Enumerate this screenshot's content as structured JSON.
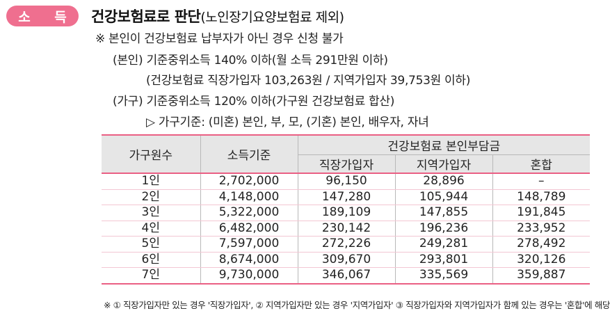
{
  "badge": "소 득",
  "title": {
    "main": "건강보험료로 판단",
    "sub": "(노인장기요양보험료 제외)"
  },
  "notes": {
    "line1": "※ 본인이 건강보험료 납부자가 아닌 경우 신청 불가",
    "line2": "(본인) 기준중위소득 140% 이하(월 소득 291만원 이하)",
    "line3": "(건강보험료 직장가입자 103,263원 / 지역가입자 39,753원 이하)",
    "line4": "(가구) 기준중위소득 120% 이하(가구원 건강보험료 합산)",
    "line5": "▷ 가구기준: (미혼) 본인, 부, 모, (기혼) 본인, 배우자, 자녀"
  },
  "table": {
    "headers": {
      "household": "가구원수",
      "income": "소득기준",
      "group": "건강보험료 본인부담금",
      "workplace": "직장가입자",
      "regional": "지역가입자",
      "mixed": "혼합"
    },
    "rows": [
      {
        "household": "1인",
        "income": "2,702,000",
        "workplace": "96,150",
        "regional": "28,896",
        "mixed": "–"
      },
      {
        "household": "2인",
        "income": "4,148,000",
        "workplace": "147,280",
        "regional": "105,944",
        "mixed": "148,789"
      },
      {
        "household": "3인",
        "income": "5,322,000",
        "workplace": "189,109",
        "regional": "147,855",
        "mixed": "191,845"
      },
      {
        "household": "4인",
        "income": "6,482,000",
        "workplace": "230,142",
        "regional": "196,236",
        "mixed": "233,952"
      },
      {
        "household": "5인",
        "income": "7,597,000",
        "workplace": "272,226",
        "regional": "249,281",
        "mixed": "278,492"
      },
      {
        "household": "6인",
        "income": "8,674,000",
        "workplace": "309,670",
        "regional": "293,801",
        "mixed": "320,126"
      },
      {
        "household": "7인",
        "income": "9,730,000",
        "workplace": "346,067",
        "regional": "335,569",
        "mixed": "359,887"
      }
    ]
  },
  "footnote": "※ ① 직장가입자만 있는 경우 '직장가입자', ② 지역가입자만 있는 경우 '지역가입자' ③ 직장가입자와 지역가입자가 함께 있는 경우는 '혼합'에 해당",
  "colors": {
    "accent": "#ef6f8f",
    "header_bg": "#e6e6e6"
  }
}
